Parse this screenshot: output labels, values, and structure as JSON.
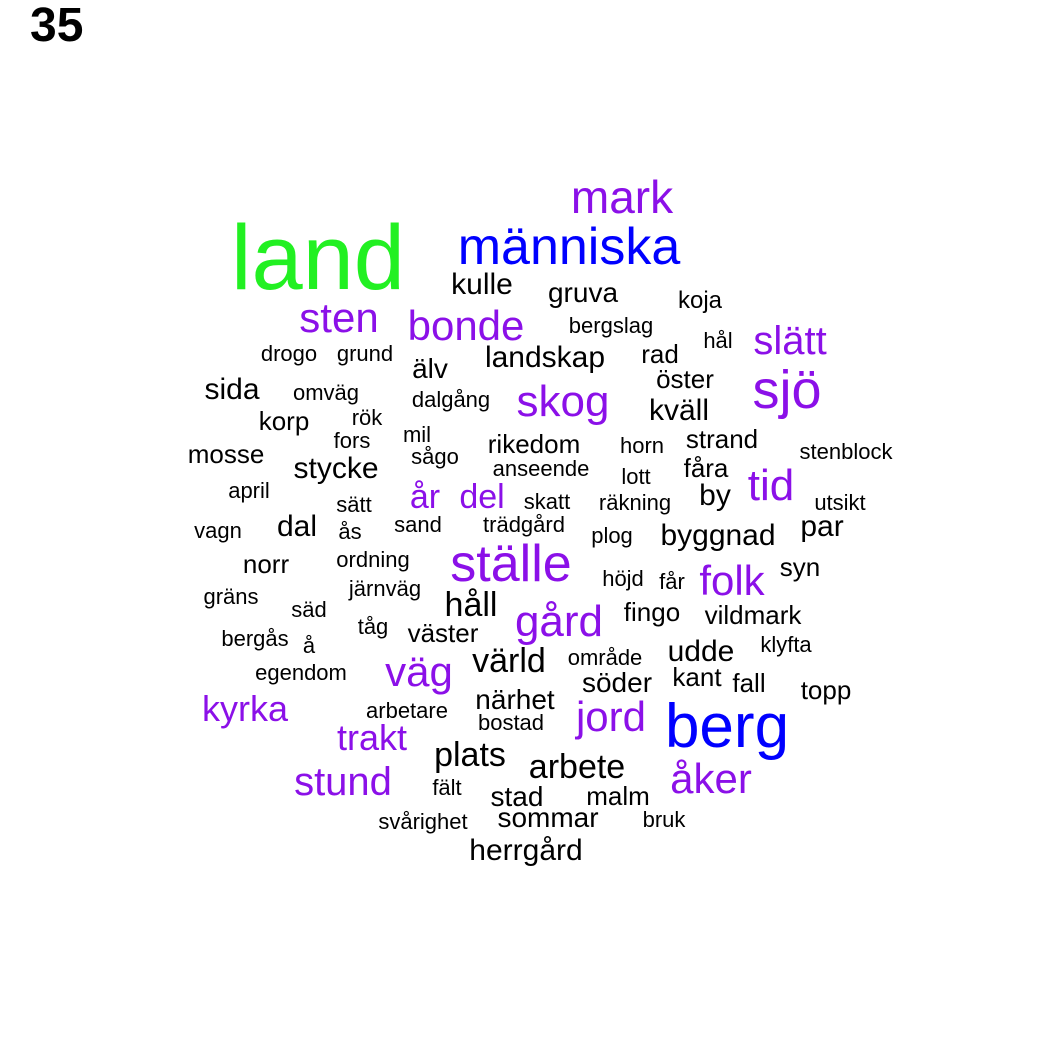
{
  "panel_number": "35",
  "colors": {
    "top": "#22f022",
    "high": "#0000ff",
    "mid": "#8b10e8",
    "low": "#000000"
  },
  "words": [
    {
      "text": "land",
      "tier": "top"
    },
    {
      "text": "människa",
      "tier": "high"
    },
    {
      "text": "berg",
      "tier": "high"
    },
    {
      "text": "mark",
      "tier": "mid"
    },
    {
      "text": "sten",
      "tier": "mid"
    },
    {
      "text": "bonde",
      "tier": "mid"
    },
    {
      "text": "slätt",
      "tier": "mid"
    },
    {
      "text": "sjö",
      "tier": "mid"
    },
    {
      "text": "skog",
      "tier": "mid"
    },
    {
      "text": "tid",
      "tier": "mid"
    },
    {
      "text": "år",
      "tier": "mid"
    },
    {
      "text": "del",
      "tier": "mid"
    },
    {
      "text": "ställe",
      "tier": "mid"
    },
    {
      "text": "folk",
      "tier": "mid"
    },
    {
      "text": "gård",
      "tier": "mid"
    },
    {
      "text": "väg",
      "tier": "mid"
    },
    {
      "text": "kyrka",
      "tier": "mid"
    },
    {
      "text": "jord",
      "tier": "mid"
    },
    {
      "text": "trakt",
      "tier": "mid"
    },
    {
      "text": "stund",
      "tier": "mid"
    },
    {
      "text": "åker",
      "tier": "mid"
    },
    {
      "text": "kulle",
      "tier": "low"
    },
    {
      "text": "gruva",
      "tier": "low"
    },
    {
      "text": "koja",
      "tier": "low"
    },
    {
      "text": "bergslag",
      "tier": "low"
    },
    {
      "text": "hål",
      "tier": "low"
    },
    {
      "text": "drogo",
      "tier": "low"
    },
    {
      "text": "grund",
      "tier": "low"
    },
    {
      "text": "landskap",
      "tier": "low"
    },
    {
      "text": "rad",
      "tier": "low"
    },
    {
      "text": "älv",
      "tier": "low"
    },
    {
      "text": "öster",
      "tier": "low"
    },
    {
      "text": "sida",
      "tier": "low"
    },
    {
      "text": "omväg",
      "tier": "low"
    },
    {
      "text": "dalgång",
      "tier": "low"
    },
    {
      "text": "kväll",
      "tier": "low"
    },
    {
      "text": "korp",
      "tier": "low"
    },
    {
      "text": "rök",
      "tier": "low"
    },
    {
      "text": "mil",
      "tier": "low"
    },
    {
      "text": "fors",
      "tier": "low"
    },
    {
      "text": "rikedom",
      "tier": "low"
    },
    {
      "text": "horn",
      "tier": "low"
    },
    {
      "text": "strand",
      "tier": "low"
    },
    {
      "text": "stenblock",
      "tier": "low"
    },
    {
      "text": "mosse",
      "tier": "low"
    },
    {
      "text": "sågo",
      "tier": "low"
    },
    {
      "text": "stycke",
      "tier": "low"
    },
    {
      "text": "anseende",
      "tier": "low"
    },
    {
      "text": "lott",
      "tier": "low"
    },
    {
      "text": "fåra",
      "tier": "low"
    },
    {
      "text": "april",
      "tier": "low"
    },
    {
      "text": "sätt",
      "tier": "low"
    },
    {
      "text": "skatt",
      "tier": "low"
    },
    {
      "text": "räkning",
      "tier": "low"
    },
    {
      "text": "by",
      "tier": "low"
    },
    {
      "text": "utsikt",
      "tier": "low"
    },
    {
      "text": "vagn",
      "tier": "low"
    },
    {
      "text": "dal",
      "tier": "low"
    },
    {
      "text": "ås",
      "tier": "low"
    },
    {
      "text": "sand",
      "tier": "low"
    },
    {
      "text": "trädgård",
      "tier": "low"
    },
    {
      "text": "plog",
      "tier": "low"
    },
    {
      "text": "byggnad",
      "tier": "low"
    },
    {
      "text": "par",
      "tier": "low"
    },
    {
      "text": "norr",
      "tier": "low"
    },
    {
      "text": "ordning",
      "tier": "low"
    },
    {
      "text": "höjd",
      "tier": "low"
    },
    {
      "text": "får",
      "tier": "low"
    },
    {
      "text": "syn",
      "tier": "low"
    },
    {
      "text": "gräns",
      "tier": "low"
    },
    {
      "text": "järnväg",
      "tier": "low"
    },
    {
      "text": "håll",
      "tier": "low"
    },
    {
      "text": "säd",
      "tier": "low"
    },
    {
      "text": "fingo",
      "tier": "low"
    },
    {
      "text": "vildmark",
      "tier": "low"
    },
    {
      "text": "tåg",
      "tier": "low"
    },
    {
      "text": "väster",
      "tier": "low"
    },
    {
      "text": "bergås",
      "tier": "low"
    },
    {
      "text": "å",
      "tier": "low"
    },
    {
      "text": "klyfta",
      "tier": "low"
    },
    {
      "text": "värld",
      "tier": "low"
    },
    {
      "text": "område",
      "tier": "low"
    },
    {
      "text": "udde",
      "tier": "low"
    },
    {
      "text": "egendom",
      "tier": "low"
    },
    {
      "text": "söder",
      "tier": "low"
    },
    {
      "text": "kant",
      "tier": "low"
    },
    {
      "text": "fall",
      "tier": "low"
    },
    {
      "text": "topp",
      "tier": "low"
    },
    {
      "text": "närhet",
      "tier": "low"
    },
    {
      "text": "arbetare",
      "tier": "low"
    },
    {
      "text": "bostad",
      "tier": "low"
    },
    {
      "text": "plats",
      "tier": "low"
    },
    {
      "text": "arbete",
      "tier": "low"
    },
    {
      "text": "fält",
      "tier": "low"
    },
    {
      "text": "stad",
      "tier": "low"
    },
    {
      "text": "malm",
      "tier": "low"
    },
    {
      "text": "svårighet",
      "tier": "low"
    },
    {
      "text": "sommar",
      "tier": "low"
    },
    {
      "text": "bruk",
      "tier": "low"
    },
    {
      "text": "herrgård",
      "tier": "low"
    }
  ]
}
